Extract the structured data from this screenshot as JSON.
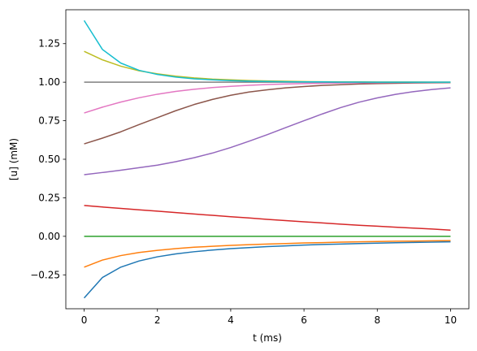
{
  "chart_data": {
    "type": "line",
    "title": "",
    "xlabel": "t (ms)",
    "ylabel": "[u] (mM)",
    "xlim": [
      -0.5,
      10.5
    ],
    "ylim": [
      -0.47,
      1.47
    ],
    "xticks": [
      0,
      2,
      4,
      6,
      8,
      10
    ],
    "xtick_labels": [
      "0",
      "2",
      "4",
      "6",
      "8",
      "10"
    ],
    "yticks": [
      -0.25,
      0,
      0.25,
      0.5,
      0.75,
      1.0,
      1.25
    ],
    "ytick_labels": [
      "−0.25",
      "0.00",
      "0.25",
      "0.50",
      "0.75",
      "1.00",
      "1.25"
    ],
    "grid": false,
    "legend": "none",
    "x": [
      0,
      0.5,
      1,
      1.5,
      2,
      2.5,
      3,
      3.5,
      4,
      4.5,
      5,
      5.5,
      6,
      6.5,
      7,
      7.5,
      8,
      8.5,
      9,
      9.5,
      10
    ],
    "series": [
      {
        "color": "#1f77b4",
        "values": [
          -0.4,
          -0.267,
          -0.2,
          -0.16,
          -0.133,
          -0.114,
          -0.1,
          -0.089,
          -0.08,
          -0.073,
          -0.067,
          -0.062,
          -0.057,
          -0.053,
          -0.05,
          -0.047,
          -0.044,
          -0.042,
          -0.04,
          -0.038,
          -0.036
        ]
      },
      {
        "color": "#ff7f0e",
        "values": [
          -0.2,
          -0.154,
          -0.125,
          -0.105,
          -0.091,
          -0.08,
          -0.071,
          -0.065,
          -0.059,
          -0.054,
          -0.05,
          -0.047,
          -0.043,
          -0.041,
          -0.038,
          -0.036,
          -0.034,
          -0.032,
          -0.031,
          -0.029,
          -0.028
        ]
      },
      {
        "color": "#2ca02c",
        "values": [
          0,
          0,
          0,
          0,
          0,
          0,
          0,
          0,
          0,
          0,
          0,
          0,
          0,
          0,
          0,
          0,
          0,
          0,
          0,
          0,
          0
        ]
      },
      {
        "color": "#d62728",
        "values": [
          0.2,
          0.19,
          0.181,
          0.172,
          0.163,
          0.154,
          0.145,
          0.136,
          0.127,
          0.119,
          0.11,
          0.102,
          0.094,
          0.087,
          0.079,
          0.072,
          0.066,
          0.059,
          0.053,
          0.047,
          0.04
        ]
      },
      {
        "color": "#9467bd",
        "values": [
          0.4,
          0.414,
          0.429,
          0.445,
          0.462,
          0.484,
          0.51,
          0.54,
          0.576,
          0.617,
          0.66,
          0.705,
          0.75,
          0.794,
          0.835,
          0.87,
          0.898,
          0.921,
          0.939,
          0.953,
          0.963
        ]
      },
      {
        "color": "#8c564b",
        "values": [
          0.6,
          0.637,
          0.678,
          0.725,
          0.77,
          0.815,
          0.855,
          0.888,
          0.915,
          0.936,
          0.951,
          0.963,
          0.972,
          0.979,
          0.984,
          0.988,
          0.991,
          0.993,
          0.995,
          0.996,
          0.997
        ]
      },
      {
        "color": "#e377c2",
        "values": [
          0.8,
          0.838,
          0.871,
          0.899,
          0.922,
          0.94,
          0.954,
          0.965,
          0.973,
          0.98,
          0.985,
          0.988,
          0.991,
          0.993,
          0.995,
          0.996,
          0.997,
          0.998,
          0.998,
          0.999,
          0.999
        ]
      },
      {
        "color": "#7f7f7f",
        "values": [
          1.0,
          1.0,
          1.0,
          1.0,
          1.0,
          1.0,
          1.0,
          1.0,
          1.0,
          1.0,
          1.0,
          1.0,
          1.0,
          1.0,
          1.0,
          1.0,
          1.0,
          1.0,
          1.0,
          1.0,
          1.0
        ]
      },
      {
        "color": "#bcbd22",
        "values": [
          1.2,
          1.145,
          1.104,
          1.074,
          1.054,
          1.039,
          1.028,
          1.02,
          1.015,
          1.011,
          1.008,
          1.006,
          1.004,
          1.003,
          1.002,
          1.002,
          1.001,
          1.001,
          1.001,
          1.0,
          1.0
        ]
      },
      {
        "color": "#17becf",
        "values": [
          1.4,
          1.212,
          1.124,
          1.077,
          1.05,
          1.033,
          1.022,
          1.015,
          1.01,
          1.007,
          1.005,
          1.003,
          1.002,
          1.002,
          1.001,
          1.001,
          1.0,
          1.0,
          1.0,
          1.0,
          1.0
        ]
      }
    ]
  }
}
